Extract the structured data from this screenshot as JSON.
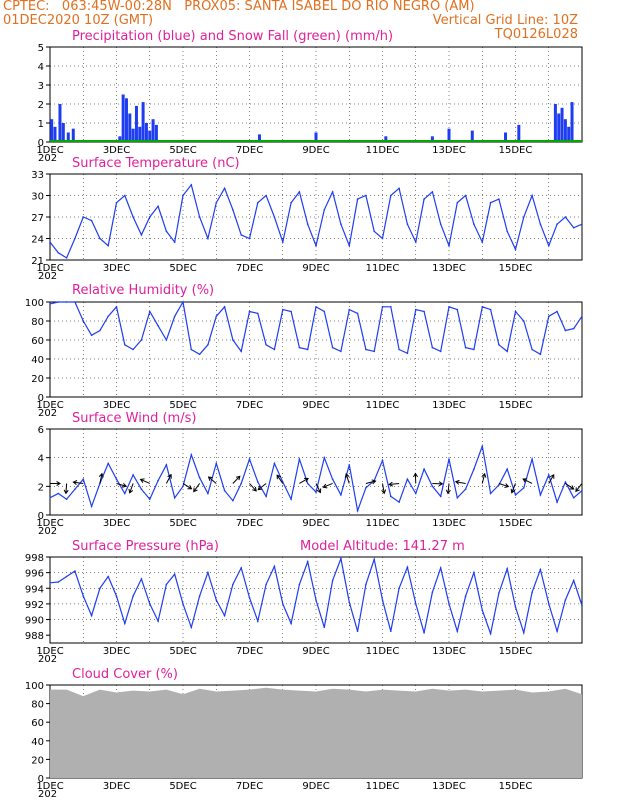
{
  "header": {
    "line1": "CPTEC:   063:45W-00:28N   PROX05: SANTA ISABEL DO RIO NEGRO (AM)",
    "line2_left": "01DEC2020 10Z (GMT)",
    "line2_right": "Vertical Grid Line: 10Z",
    "line3_right": "TQ0126L028"
  },
  "colors": {
    "title": "#e0209a",
    "header": "#e07020",
    "precip": "#1f3df0",
    "snow": "#00aa00",
    "line": "#1f3df0",
    "cloud": "#b0b0b0",
    "grid": "#000000"
  },
  "x_labels": [
    "1DEC",
    "3DEC",
    "5DEC",
    "7DEC",
    "9DEC",
    "11DEC",
    "13DEC",
    "15DEC"
  ],
  "x_year_fragment": "202",
  "chart_data": [
    {
      "type": "bar",
      "title": "Precipitation (blue) and Snow Fall (green) (mm/h)",
      "ylim": [
        0,
        5
      ],
      "yticks": [
        "0",
        "1",
        "2",
        "3",
        "4",
        "5"
      ],
      "series": [
        {
          "name": "Precipitation",
          "x_days": [
            0.05,
            0.15,
            0.3,
            0.4,
            0.55,
            0.7,
            2.1,
            2.2,
            2.3,
            2.4,
            2.5,
            2.6,
            2.7,
            2.8,
            2.9,
            3.0,
            3.1,
            3.2,
            6.3,
            8.0,
            10.1,
            11.5,
            12.0,
            12.7,
            13.7,
            14.1,
            15.2,
            15.3,
            15.4,
            15.5,
            15.6,
            15.7
          ],
          "values": [
            1.2,
            0.8,
            2.0,
            1.0,
            0.5,
            0.7,
            0.3,
            2.5,
            2.3,
            1.5,
            0.7,
            1.9,
            0.8,
            2.1,
            1.0,
            0.6,
            1.2,
            0.9,
            0.4,
            0.5,
            0.3,
            0.3,
            0.7,
            0.6,
            0.5,
            0.9,
            2.0,
            1.5,
            1.8,
            1.2,
            0.8,
            2.1
          ]
        },
        {
          "name": "Snow Fall",
          "values": [
            0
          ]
        }
      ]
    },
    {
      "type": "line",
      "title": "Surface Temperature (nC)",
      "ylim": [
        21,
        33
      ],
      "yticks": [
        "21",
        "24",
        "27",
        "30",
        "33"
      ],
      "x_days": [
        0,
        0.25,
        0.5,
        0.75,
        1,
        1.25,
        1.5,
        1.75,
        2,
        2.25,
        2.5,
        2.75,
        3,
        3.25,
        3.5,
        3.75,
        4,
        4.25,
        4.5,
        4.75,
        5,
        5.25,
        5.5,
        5.75,
        6,
        6.25,
        6.5,
        6.75,
        7,
        7.25,
        7.5,
        7.75,
        8,
        8.25,
        8.5,
        8.75,
        9,
        9.25,
        9.5,
        9.75,
        10,
        10.25,
        10.5,
        10.75,
        11,
        11.25,
        11.5,
        11.75,
        12,
        12.25,
        12.5,
        12.75,
        13,
        13.25,
        13.5,
        13.75,
        14,
        14.25,
        14.5,
        14.75,
        15,
        15.25,
        15.5,
        15.75,
        16
      ],
      "values": [
        23.5,
        22,
        21.3,
        24,
        27,
        26.5,
        24,
        23,
        29,
        30,
        27,
        24.5,
        27,
        28.5,
        25,
        23.5,
        30,
        31.5,
        27,
        24,
        29,
        31,
        28,
        24.5,
        24,
        29,
        30,
        27,
        23.5,
        29,
        30.5,
        26,
        23,
        28,
        30.5,
        26,
        23,
        29.5,
        30,
        25,
        24,
        30,
        31,
        26,
        23.5,
        29.5,
        30.5,
        26,
        23,
        29,
        30,
        26,
        23.5,
        29,
        29.5,
        25,
        22.5,
        27,
        30,
        26,
        23,
        26,
        27,
        25.5,
        26
      ]
    },
    {
      "type": "line",
      "title": "Relative Humidity (%)",
      "ylim": [
        0,
        100
      ],
      "yticks": [
        "0",
        "20",
        "40",
        "60",
        "80",
        "100"
      ],
      "x_days": [
        0,
        0.25,
        0.5,
        0.75,
        1,
        1.25,
        1.5,
        1.75,
        2,
        2.25,
        2.5,
        2.75,
        3,
        3.25,
        3.5,
        3.75,
        4,
        4.25,
        4.5,
        4.75,
        5,
        5.25,
        5.5,
        5.75,
        6,
        6.25,
        6.5,
        6.75,
        7,
        7.25,
        7.5,
        7.75,
        8,
        8.25,
        8.5,
        8.75,
        9,
        9.25,
        9.5,
        9.75,
        10,
        10.25,
        10.5,
        10.75,
        11,
        11.25,
        11.5,
        11.75,
        12,
        12.25,
        12.5,
        12.75,
        13,
        13.25,
        13.5,
        13.75,
        14,
        14.25,
        14.5,
        14.75,
        15,
        15.25,
        15.5,
        15.75,
        16
      ],
      "values": [
        98,
        100,
        100,
        100,
        80,
        65,
        70,
        85,
        95,
        55,
        50,
        60,
        90,
        75,
        60,
        85,
        100,
        50,
        45,
        55,
        85,
        95,
        60,
        48,
        90,
        88,
        55,
        50,
        92,
        90,
        52,
        50,
        95,
        90,
        52,
        48,
        92,
        88,
        50,
        48,
        95,
        95,
        50,
        46,
        92,
        90,
        52,
        48,
        95,
        92,
        52,
        50,
        95,
        92,
        55,
        48,
        90,
        80,
        50,
        45,
        85,
        90,
        70,
        72,
        85
      ]
    },
    {
      "type": "line",
      "title": "Surface Wind (m/s)",
      "ylim": [
        0,
        6
      ],
      "yticks": [
        "0",
        "2",
        "4",
        "6"
      ],
      "x_days": [
        0,
        0.25,
        0.5,
        0.75,
        1,
        1.25,
        1.5,
        1.75,
        2,
        2.25,
        2.5,
        2.75,
        3,
        3.25,
        3.5,
        3.75,
        4,
        4.25,
        4.5,
        4.75,
        5,
        5.25,
        5.5,
        5.75,
        6,
        6.25,
        6.5,
        6.75,
        7,
        7.25,
        7.5,
        7.75,
        8,
        8.25,
        8.5,
        8.75,
        9,
        9.25,
        9.5,
        9.75,
        10,
        10.25,
        10.5,
        10.75,
        11,
        11.25,
        11.5,
        11.75,
        12,
        12.25,
        12.5,
        12.75,
        13,
        13.25,
        13.5,
        13.75,
        14,
        14.25,
        14.5,
        14.75,
        15,
        15.25,
        15.5,
        15.75,
        16
      ],
      "values": [
        1.2,
        1.5,
        1.1,
        1.8,
        2.5,
        0.6,
        2.2,
        3.6,
        2.5,
        1.5,
        2.8,
        1.8,
        1.1,
        2.4,
        3.5,
        1.2,
        2.0,
        4.2,
        2.6,
        1.5,
        3.6,
        1.7,
        1.0,
        2.2,
        3.9,
        2.3,
        1.3,
        3.6,
        2.3,
        1.1,
        3.9,
        2.2,
        1.6,
        4.0,
        2.5,
        1.4,
        3.5,
        0.3,
        1.9,
        2.4,
        3.8,
        1.3,
        0.9,
        2.5,
        1.5,
        3.2,
        2.0,
        1.3,
        3.9,
        1.2,
        1.8,
        3.2,
        4.8,
        1.5,
        2.1,
        3.2,
        1.4,
        1.9,
        3.9,
        1.4,
        2.8,
        0.9,
        2.3,
        1.2,
        1.7
      ]
    },
    {
      "type": "line",
      "title": "Surface Pressure (hPa)",
      "annotation": "Model Altitude: 141.27 m",
      "ylim": [
        987,
        998
      ],
      "yticks": [
        "988",
        "990",
        "992",
        "994",
        "996",
        "998"
      ],
      "x_days": [
        0,
        0.25,
        0.5,
        0.75,
        1,
        1.25,
        1.5,
        1.75,
        2,
        2.25,
        2.5,
        2.75,
        3,
        3.25,
        3.5,
        3.75,
        4,
        4.25,
        4.5,
        4.75,
        5,
        5.25,
        5.5,
        5.75,
        6,
        6.25,
        6.5,
        6.75,
        7,
        7.25,
        7.5,
        7.75,
        8,
        8.25,
        8.5,
        8.75,
        9,
        9.25,
        9.5,
        9.75,
        10,
        10.25,
        10.5,
        10.75,
        11,
        11.25,
        11.5,
        11.75,
        12,
        12.25,
        12.5,
        12.75,
        13,
        13.25,
        13.5,
        13.75,
        14,
        14.25,
        14.5,
        14.75,
        15,
        15.25,
        15.5,
        15.75,
        16
      ],
      "values": [
        994.7,
        994.8,
        995.5,
        996.2,
        993,
        990.5,
        994,
        995.5,
        993,
        989.5,
        993,
        995.2,
        992,
        989.8,
        994.5,
        995.8,
        992,
        989,
        993,
        996,
        992.5,
        990.5,
        994.5,
        996.6,
        992.8,
        989.8,
        994.5,
        996.8,
        992,
        989.5,
        994.5,
        997.4,
        992.5,
        989,
        995,
        997.8,
        992.2,
        988.5,
        994.5,
        997.7,
        992.5,
        988.5,
        994,
        996.7,
        992,
        988.3,
        993.5,
        996.6,
        992,
        988.5,
        993,
        996,
        991.2,
        988.2,
        993.4,
        996.5,
        991.6,
        988.3,
        993.5,
        996.4,
        992,
        988.5,
        992.5,
        995,
        991.8
      ]
    },
    {
      "type": "area",
      "title": "Cloud Cover (%)",
      "ylim": [
        0,
        100
      ],
      "yticks": [
        "0",
        "20",
        "40",
        "60",
        "80",
        "100"
      ],
      "x_days": [
        0,
        0.5,
        1,
        1.5,
        2,
        2.5,
        3,
        3.5,
        4,
        4.5,
        5,
        5.5,
        6,
        6.5,
        7,
        7.5,
        8,
        8.5,
        9,
        9.5,
        10,
        10.5,
        11,
        11.5,
        12,
        12.5,
        13,
        13.5,
        14,
        14.5,
        15,
        15.5,
        16
      ],
      "values": [
        95,
        95,
        88,
        95,
        92,
        94,
        93,
        95,
        90,
        96,
        93,
        94,
        95,
        97,
        95,
        94,
        93,
        96,
        95,
        93,
        95,
        94,
        93,
        96,
        94,
        95,
        93,
        94,
        95,
        92,
        93,
        96,
        90
      ]
    }
  ]
}
